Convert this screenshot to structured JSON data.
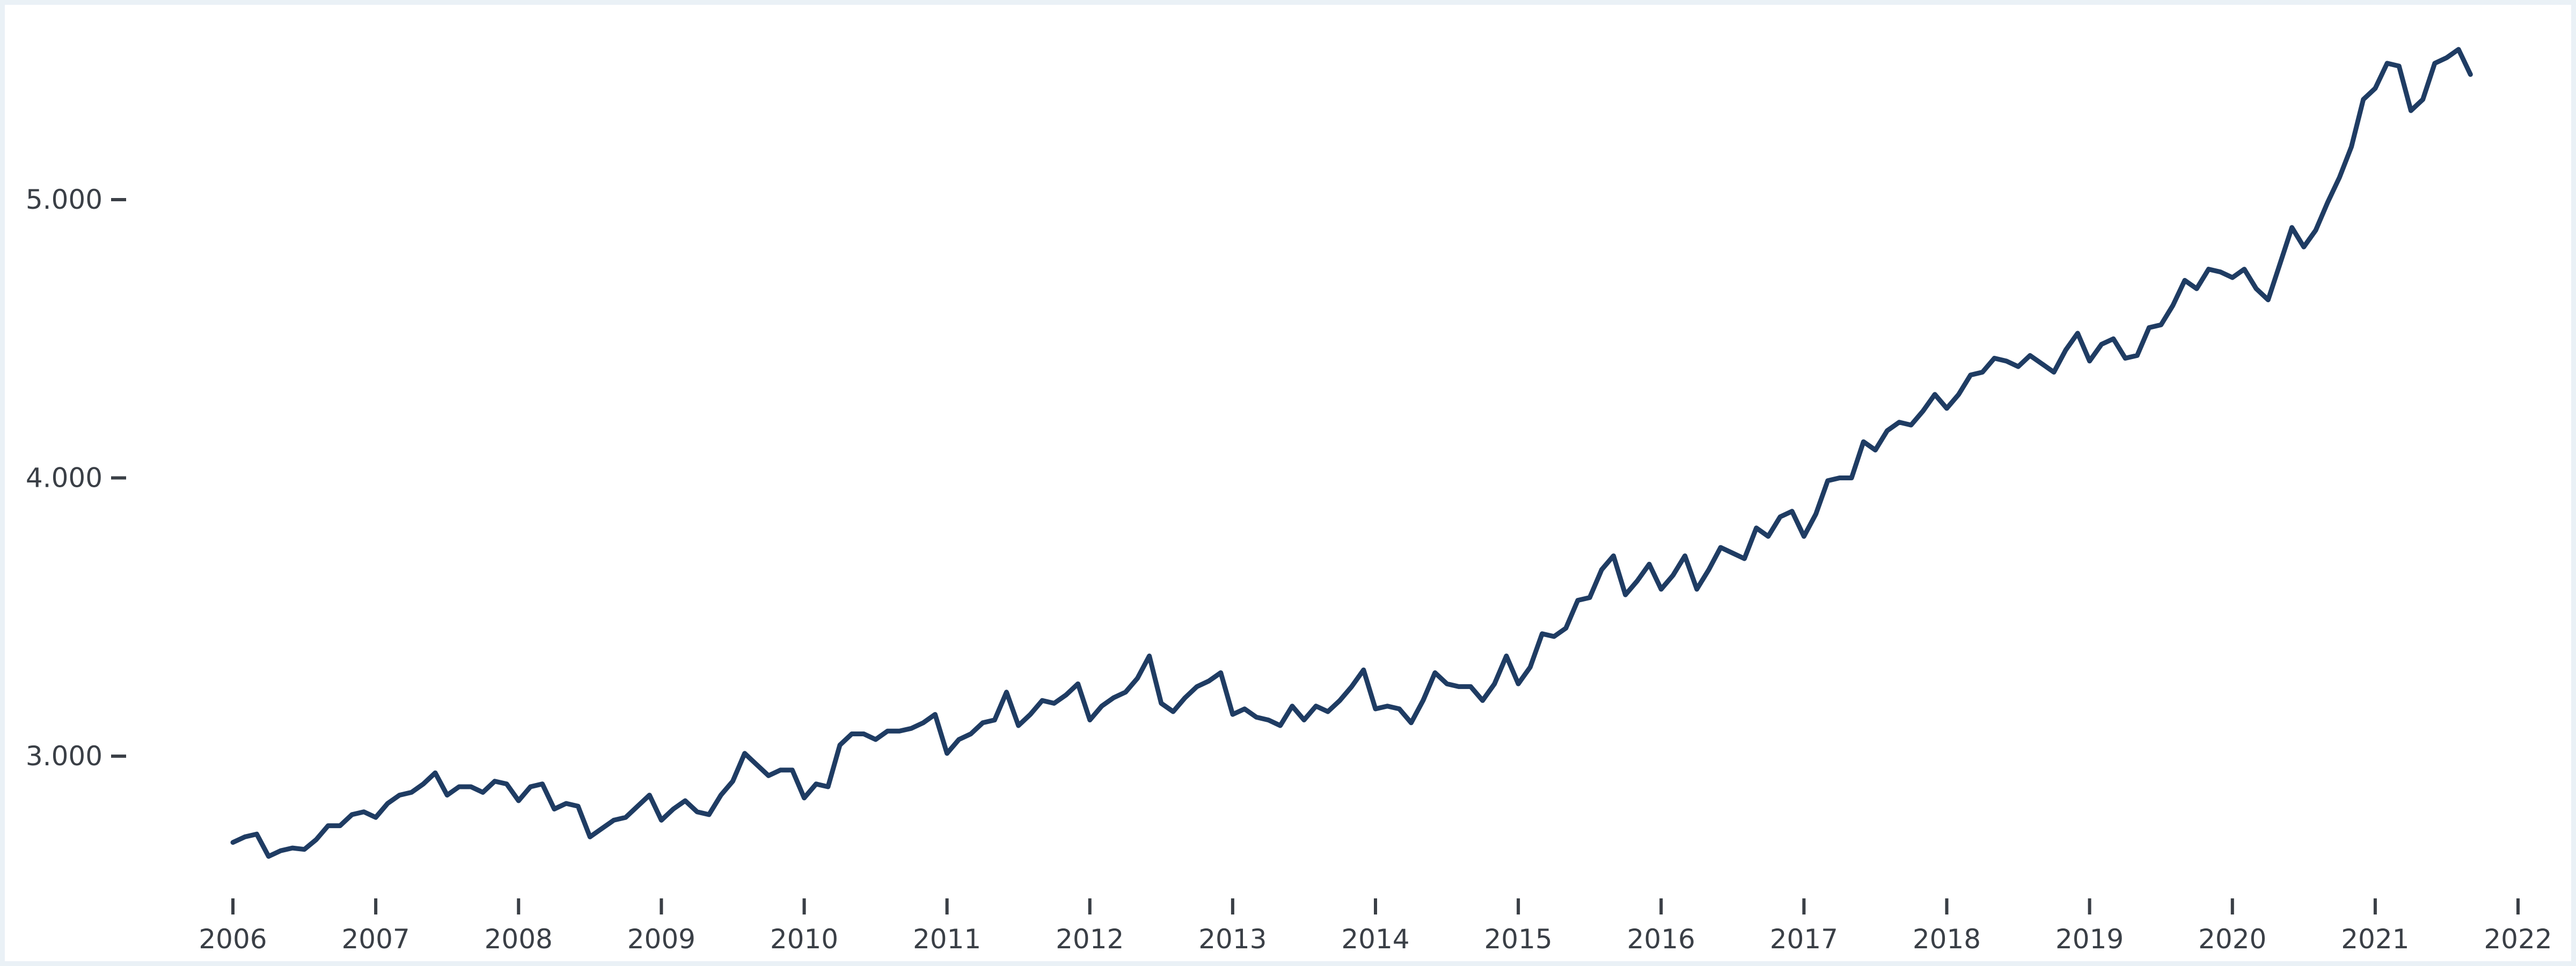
{
  "chart_data": {
    "type": "line",
    "title": "",
    "xlabel": "",
    "ylabel": "",
    "grid": false,
    "legend": "none",
    "xlim": [
      "2006-01",
      "2022-01"
    ],
    "ylim": [
      2500,
      5600
    ],
    "x_ticks": [
      "2006",
      "2007",
      "2008",
      "2009",
      "2010",
      "2011",
      "2012",
      "2013",
      "2014",
      "2015",
      "2016",
      "2017",
      "2018",
      "2019",
      "2020",
      "2021",
      "2022"
    ],
    "y_ticks": [
      {
        "value": 3000,
        "label": "3.000"
      },
      {
        "value": 4000,
        "label": "4.000"
      },
      {
        "value": 5000,
        "label": "5.000"
      }
    ],
    "series": [
      {
        "color": "#1f3c63",
        "points": [
          [
            "2006-01",
            2690
          ],
          [
            "2006-02",
            2710
          ],
          [
            "2006-03",
            2720
          ],
          [
            "2006-04",
            2640
          ],
          [
            "2006-05",
            2660
          ],
          [
            "2006-06",
            2670
          ],
          [
            "2006-07",
            2665
          ],
          [
            "2006-08",
            2700
          ],
          [
            "2006-09",
            2750
          ],
          [
            "2006-10",
            2750
          ],
          [
            "2006-11",
            2790
          ],
          [
            "2006-12",
            2800
          ],
          [
            "2007-01",
            2780
          ],
          [
            "2007-02",
            2830
          ],
          [
            "2007-03",
            2860
          ],
          [
            "2007-04",
            2870
          ],
          [
            "2007-05",
            2900
          ],
          [
            "2007-06",
            2940
          ],
          [
            "2007-07",
            2860
          ],
          [
            "2007-08",
            2890
          ],
          [
            "2007-09",
            2890
          ],
          [
            "2007-10",
            2870
          ],
          [
            "2007-11",
            2910
          ],
          [
            "2007-12",
            2900
          ],
          [
            "2008-01",
            2840
          ],
          [
            "2008-02",
            2890
          ],
          [
            "2008-03",
            2900
          ],
          [
            "2008-04",
            2810
          ],
          [
            "2008-05",
            2830
          ],
          [
            "2008-06",
            2820
          ],
          [
            "2008-07",
            2710
          ],
          [
            "2008-08",
            2740
          ],
          [
            "2008-09",
            2770
          ],
          [
            "2008-10",
            2780
          ],
          [
            "2008-11",
            2820
          ],
          [
            "2008-12",
            2860
          ],
          [
            "2009-01",
            2770
          ],
          [
            "2009-02",
            2810
          ],
          [
            "2009-03",
            2840
          ],
          [
            "2009-04",
            2800
          ],
          [
            "2009-05",
            2790
          ],
          [
            "2009-06",
            2860
          ],
          [
            "2009-07",
            2910
          ],
          [
            "2009-08",
            3010
          ],
          [
            "2009-09",
            2970
          ],
          [
            "2009-10",
            2930
          ],
          [
            "2009-11",
            2950
          ],
          [
            "2009-12",
            2950
          ],
          [
            "2010-01",
            2850
          ],
          [
            "2010-02",
            2900
          ],
          [
            "2010-03",
            2890
          ],
          [
            "2010-04",
            3040
          ],
          [
            "2010-05",
            3080
          ],
          [
            "2010-06",
            3080
          ],
          [
            "2010-07",
            3060
          ],
          [
            "2010-08",
            3090
          ],
          [
            "2010-09",
            3090
          ],
          [
            "2010-10",
            3100
          ],
          [
            "2010-11",
            3120
          ],
          [
            "2010-12",
            3150
          ],
          [
            "2011-01",
            3010
          ],
          [
            "2011-02",
            3060
          ],
          [
            "2011-03",
            3080
          ],
          [
            "2011-04",
            3120
          ],
          [
            "2011-05",
            3130
          ],
          [
            "2011-06",
            3230
          ],
          [
            "2011-07",
            3110
          ],
          [
            "2011-08",
            3150
          ],
          [
            "2011-09",
            3200
          ],
          [
            "2011-10",
            3190
          ],
          [
            "2011-11",
            3220
          ],
          [
            "2011-12",
            3260
          ],
          [
            "2012-01",
            3130
          ],
          [
            "2012-02",
            3180
          ],
          [
            "2012-03",
            3210
          ],
          [
            "2012-04",
            3230
          ],
          [
            "2012-05",
            3280
          ],
          [
            "2012-06",
            3360
          ],
          [
            "2012-07",
            3190
          ],
          [
            "2012-08",
            3160
          ],
          [
            "2012-09",
            3210
          ],
          [
            "2012-10",
            3250
          ],
          [
            "2012-11",
            3270
          ],
          [
            "2012-12",
            3300
          ],
          [
            "2013-01",
            3150
          ],
          [
            "2013-02",
            3170
          ],
          [
            "2013-03",
            3140
          ],
          [
            "2013-04",
            3130
          ],
          [
            "2013-05",
            3110
          ],
          [
            "2013-06",
            3180
          ],
          [
            "2013-07",
            3130
          ],
          [
            "2013-08",
            3180
          ],
          [
            "2013-09",
            3160
          ],
          [
            "2013-10",
            3200
          ],
          [
            "2013-11",
            3250
          ],
          [
            "2013-12",
            3310
          ],
          [
            "2014-01",
            3170
          ],
          [
            "2014-02",
            3180
          ],
          [
            "2014-03",
            3170
          ],
          [
            "2014-04",
            3120
          ],
          [
            "2014-05",
            3200
          ],
          [
            "2014-06",
            3300
          ],
          [
            "2014-07",
            3260
          ],
          [
            "2014-08",
            3250
          ],
          [
            "2014-09",
            3250
          ],
          [
            "2014-10",
            3200
          ],
          [
            "2014-11",
            3260
          ],
          [
            "2014-12",
            3360
          ],
          [
            "2015-01",
            3260
          ],
          [
            "2015-02",
            3320
          ],
          [
            "2015-03",
            3440
          ],
          [
            "2015-04",
            3430
          ],
          [
            "2015-05",
            3460
          ],
          [
            "2015-06",
            3560
          ],
          [
            "2015-07",
            3570
          ],
          [
            "2015-08",
            3670
          ],
          [
            "2015-09",
            3720
          ],
          [
            "2015-10",
            3580
          ],
          [
            "2015-11",
            3630
          ],
          [
            "2015-12",
            3690
          ],
          [
            "2016-01",
            3600
          ],
          [
            "2016-02",
            3650
          ],
          [
            "2016-03",
            3720
          ],
          [
            "2016-04",
            3600
          ],
          [
            "2016-05",
            3670
          ],
          [
            "2016-06",
            3750
          ],
          [
            "2016-07",
            3730
          ],
          [
            "2016-08",
            3710
          ],
          [
            "2016-09",
            3820
          ],
          [
            "2016-10",
            3790
          ],
          [
            "2016-11",
            3860
          ],
          [
            "2016-12",
            3880
          ],
          [
            "2017-01",
            3790
          ],
          [
            "2017-02",
            3870
          ],
          [
            "2017-03",
            3990
          ],
          [
            "2017-04",
            4000
          ],
          [
            "2017-05",
            4000
          ],
          [
            "2017-06",
            4130
          ],
          [
            "2017-07",
            4100
          ],
          [
            "2017-08",
            4170
          ],
          [
            "2017-09",
            4200
          ],
          [
            "2017-10",
            4190
          ],
          [
            "2017-11",
            4240
          ],
          [
            "2017-12",
            4300
          ],
          [
            "2018-01",
            4250
          ],
          [
            "2018-02",
            4300
          ],
          [
            "2018-03",
            4370
          ],
          [
            "2018-04",
            4380
          ],
          [
            "2018-05",
            4430
          ],
          [
            "2018-06",
            4420
          ],
          [
            "2018-07",
            4400
          ],
          [
            "2018-08",
            4440
          ],
          [
            "2018-09",
            4410
          ],
          [
            "2018-10",
            4380
          ],
          [
            "2018-11",
            4460
          ],
          [
            "2018-12",
            4520
          ],
          [
            "2019-01",
            4420
          ],
          [
            "2019-02",
            4480
          ],
          [
            "2019-03",
            4500
          ],
          [
            "2019-04",
            4430
          ],
          [
            "2019-05",
            4440
          ],
          [
            "2019-06",
            4540
          ],
          [
            "2019-07",
            4550
          ],
          [
            "2019-08",
            4620
          ],
          [
            "2019-09",
            4710
          ],
          [
            "2019-10",
            4680
          ],
          [
            "2019-11",
            4750
          ],
          [
            "2019-12",
            4740
          ],
          [
            "2020-01",
            4720
          ],
          [
            "2020-02",
            4750
          ],
          [
            "2020-03",
            4680
          ],
          [
            "2020-04",
            4640
          ],
          [
            "2020-05",
            4770
          ],
          [
            "2020-06",
            4900
          ],
          [
            "2020-07",
            4830
          ],
          [
            "2020-08",
            4890
          ],
          [
            "2020-09",
            4990
          ],
          [
            "2020-10",
            5080
          ],
          [
            "2020-11",
            5190
          ],
          [
            "2020-12",
            5360
          ],
          [
            "2021-01",
            5400
          ],
          [
            "2021-02",
            5490
          ],
          [
            "2021-03",
            5480
          ],
          [
            "2021-04",
            5320
          ],
          [
            "2021-05",
            5360
          ],
          [
            "2021-06",
            5490
          ],
          [
            "2021-07",
            5510
          ],
          [
            "2021-08",
            5540
          ],
          [
            "2021-09",
            5450
          ]
        ]
      }
    ]
  }
}
